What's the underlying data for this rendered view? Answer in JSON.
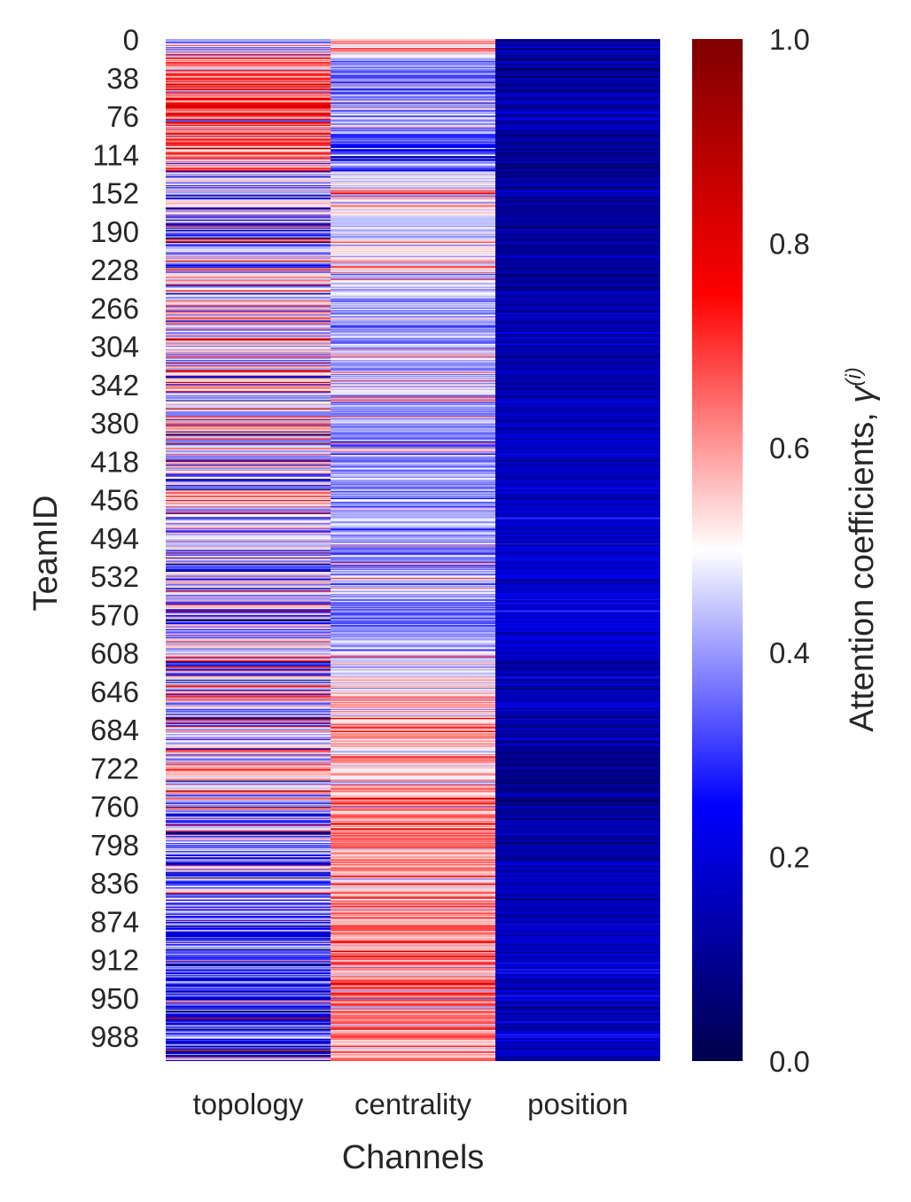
{
  "chart_data": {
    "type": "heatmap",
    "title": "",
    "xlabel": "Channels",
    "ylabel": "TeamID",
    "x_categories": [
      "topology",
      "centrality",
      "position"
    ],
    "y_tick_labels": [
      "0",
      "38",
      "76",
      "114",
      "152",
      "190",
      "228",
      "266",
      "304",
      "342",
      "380",
      "418",
      "456",
      "494",
      "532",
      "570",
      "608",
      "646",
      "684",
      "722",
      "760",
      "798",
      "836",
      "874",
      "912",
      "950",
      "988"
    ],
    "y_range": [
      0,
      1013
    ],
    "y_tick_step": 38,
    "colormap": "seismic",
    "colormap_stops": [
      "#00004c",
      "#0000ff",
      "#ffffff",
      "#ff0000",
      "#7f0000"
    ],
    "colorbar": {
      "label_text": "Attention coefficients, ",
      "label_symbol": "γ",
      "label_superscript": "(i)",
      "range": [
        0.0,
        1.0
      ],
      "tick_labels": [
        "0.0",
        "0.2",
        "0.4",
        "0.6",
        "0.8",
        "1.0"
      ]
    },
    "row_profile": {
      "segment_size_rows": 38,
      "topology": [
        0.35,
        0.7,
        0.72,
        0.62,
        0.4,
        0.42,
        0.45,
        0.5,
        0.45,
        0.48,
        0.55,
        0.45,
        0.5,
        0.45,
        0.42,
        0.42,
        0.45,
        0.52,
        0.35,
        0.55,
        0.48,
        0.35,
        0.4,
        0.35,
        0.3,
        0.3,
        0.3
      ],
      "centrality": [
        0.58,
        0.35,
        0.45,
        0.25,
        0.55,
        0.45,
        0.48,
        0.4,
        0.4,
        0.45,
        0.38,
        0.42,
        0.4,
        0.42,
        0.45,
        0.38,
        0.45,
        0.55,
        0.58,
        0.55,
        0.6,
        0.62,
        0.6,
        0.62,
        0.66,
        0.62,
        0.62
      ],
      "position": [
        0.12,
        0.12,
        0.13,
        0.1,
        0.12,
        0.12,
        0.11,
        0.13,
        0.14,
        0.15,
        0.16,
        0.16,
        0.17,
        0.18,
        0.19,
        0.2,
        0.17,
        0.14,
        0.12,
        0.1,
        0.12,
        0.13,
        0.15,
        0.15,
        0.17,
        0.17,
        0.16
      ],
      "noise": [
        0.3,
        0.16,
        0.08
      ]
    }
  }
}
